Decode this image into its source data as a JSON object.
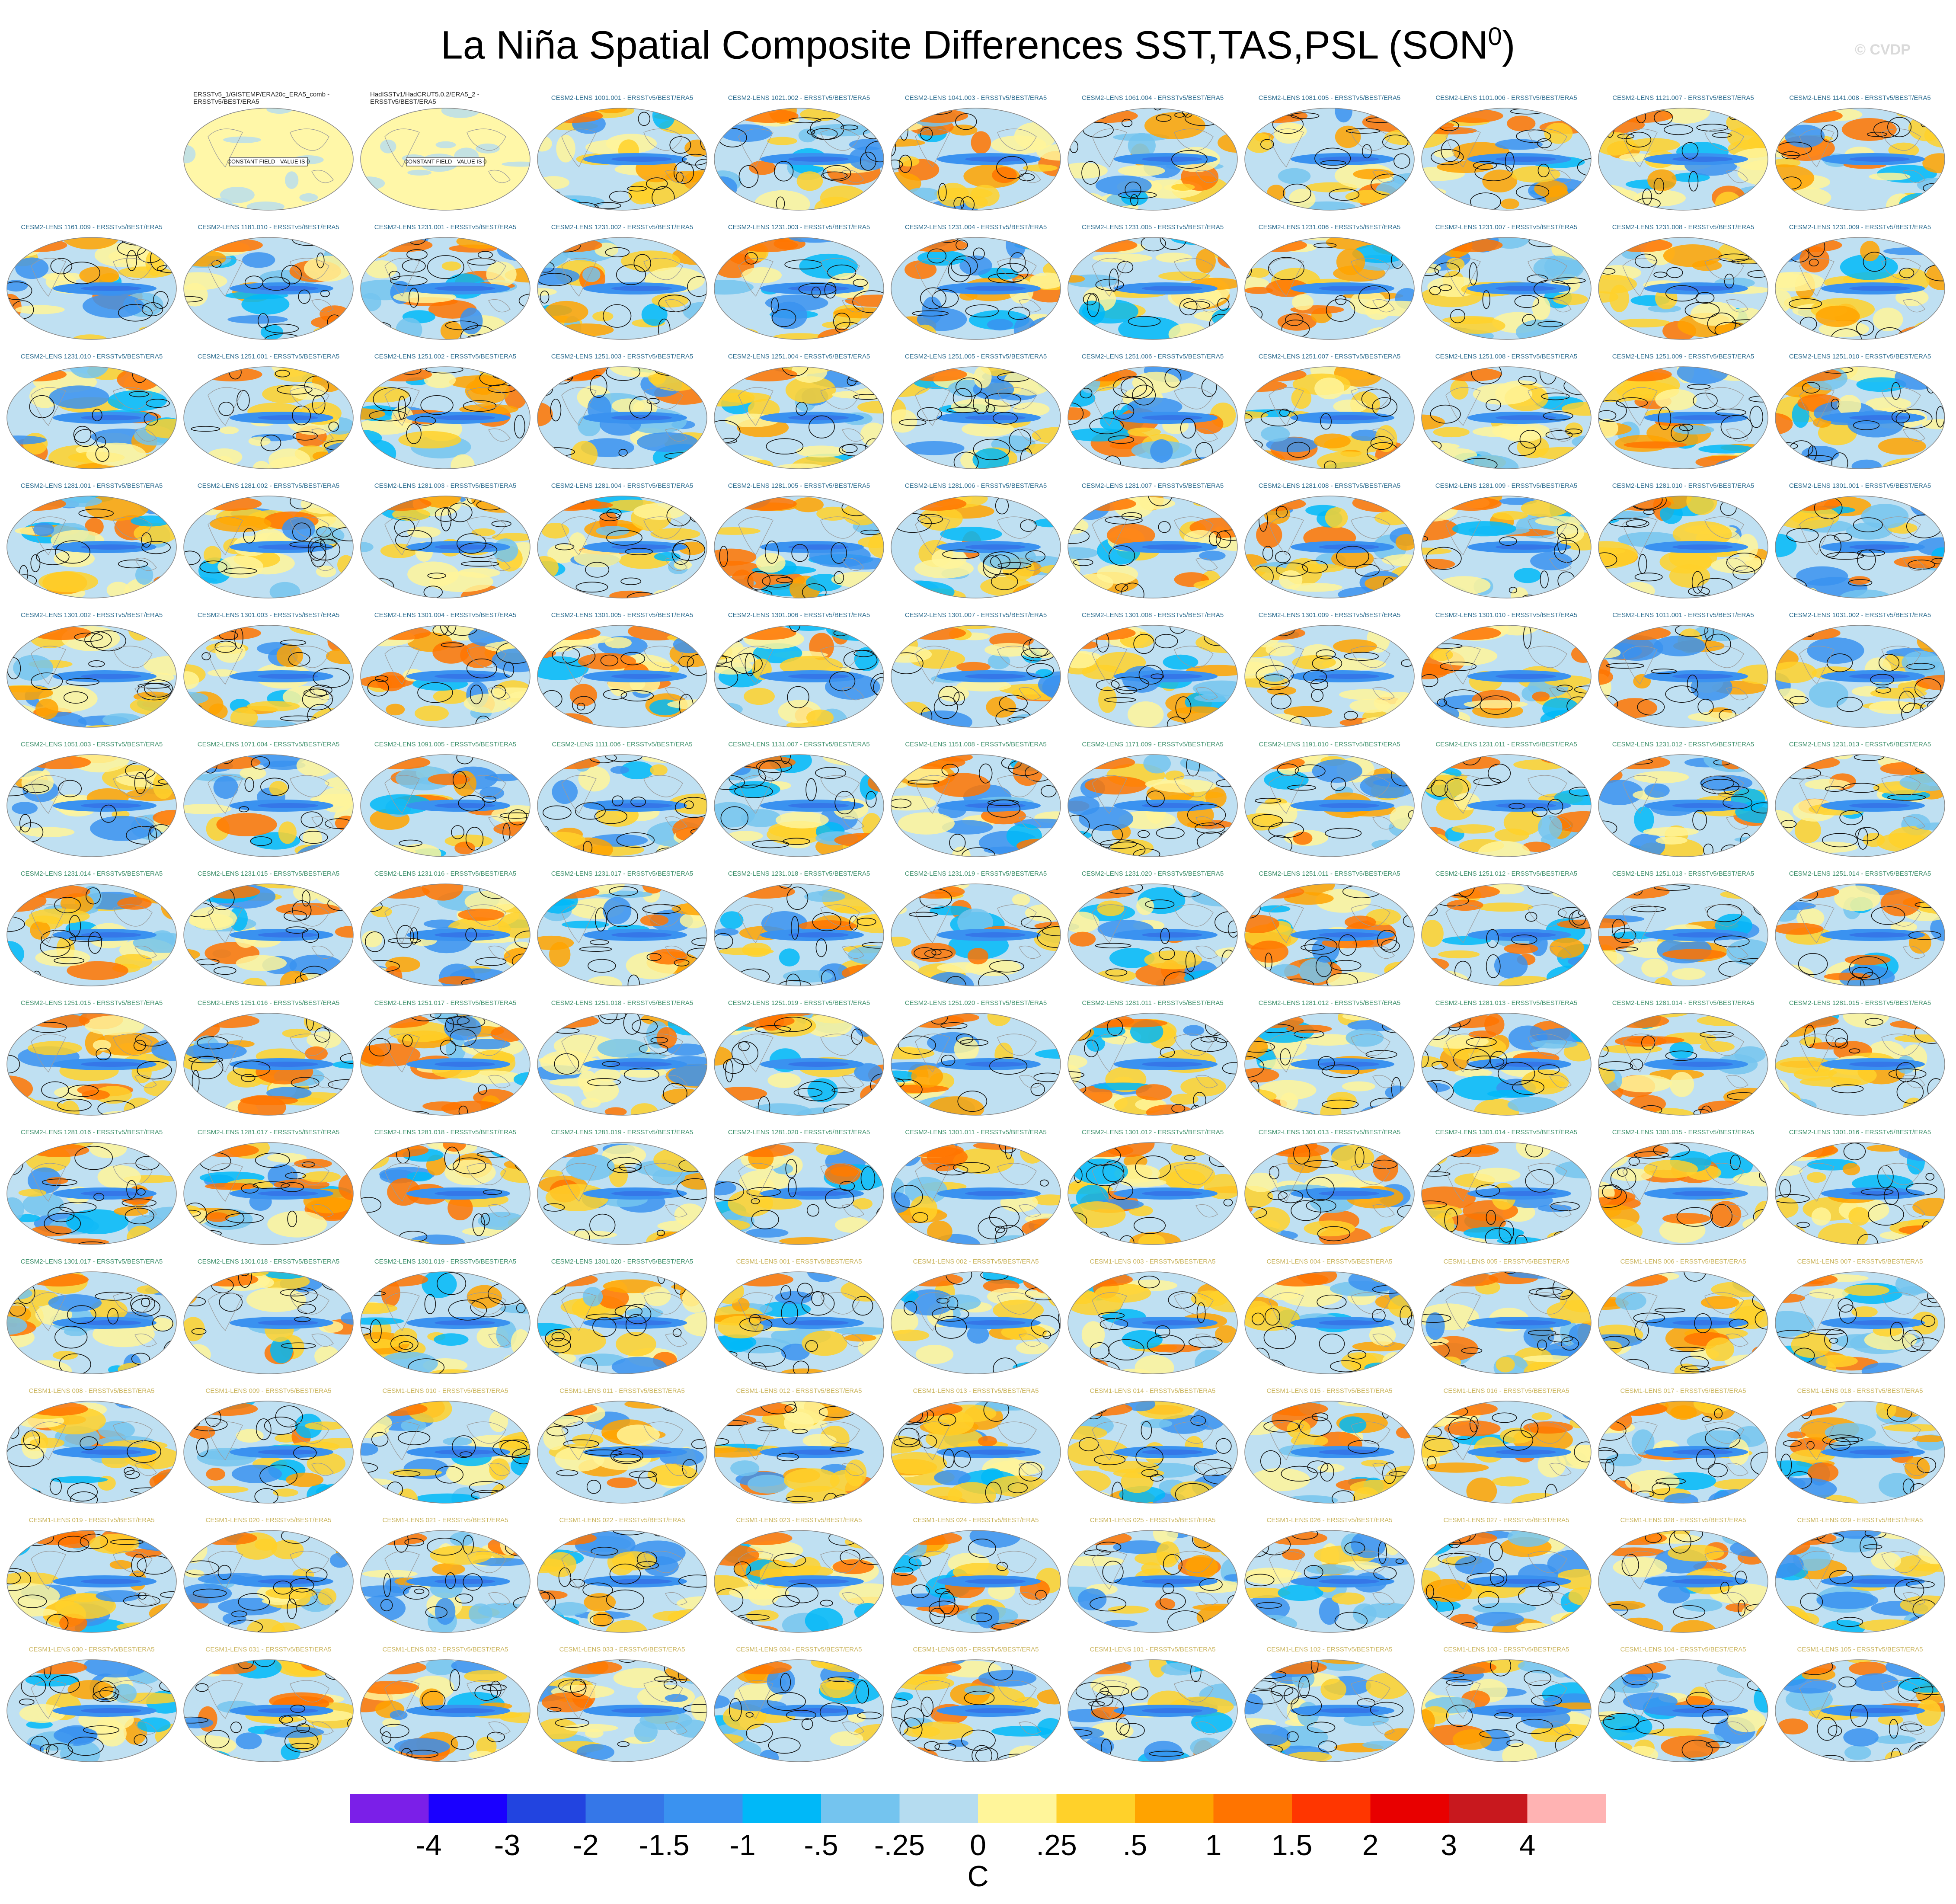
{
  "header": {
    "title": "La Niña Spatial Composite Differences SST,TAS,PSL (SON",
    "title_sup": "0",
    "title_end": ")",
    "watermark": "© CVDP"
  },
  "chart_data": {
    "type": "heatmap",
    "title": "La Niña Spatial Composite Differences SST,TAS,PSL (SON0)",
    "grid": {
      "rows": 13,
      "columns": 11
    },
    "observations": [
      {
        "label": "ERSSTv5_1/GISTEMP/ERA20c_ERA5_comb - ERSSTv5/BEST/ERA5",
        "field_note": "CONSTANT FIELD - VALUE IS 0"
      },
      {
        "label": "HadISSTv1/HadCRUT5.0.2/ERA5_2 - ERSSTv5/BEST/ERA5",
        "field_note": "CONSTANT FIELD - VALUE IS 0"
      }
    ],
    "panel_labels": [
      "CESM2-LENS 1001.001 - ERSSTv5/BEST/ERA5",
      "CESM2-LENS 1021.002 - ERSSTv5/BEST/ERA5",
      "CESM2-LENS 1041.003 - ERSSTv5/BEST/ERA5",
      "CESM2-LENS 1061.004 - ERSSTv5/BEST/ERA5",
      "CESM2-LENS 1081.005 - ERSSTv5/BEST/ERA5",
      "CESM2-LENS 1101.006 - ERSSTv5/BEST/ERA5",
      "CESM2-LENS 1121.007 - ERSSTv5/BEST/ERA5",
      "CESM2-LENS 1141.008 - ERSSTv5/BEST/ERA5",
      "CESM2-LENS 1161.009 - ERSSTv5/BEST/ERA5",
      "CESM2-LENS 1181.010 - ERSSTv5/BEST/ERA5",
      "CESM2-LENS 1231.001 - ERSSTv5/BEST/ERA5",
      "CESM2-LENS 1231.002 - ERSSTv5/BEST/ERA5",
      "CESM2-LENS 1231.003 - ERSSTv5/BEST/ERA5",
      "CESM2-LENS 1231.004 - ERSSTv5/BEST/ERA5",
      "CESM2-LENS 1231.005 - ERSSTv5/BEST/ERA5",
      "CESM2-LENS 1231.006 - ERSSTv5/BEST/ERA5",
      "CESM2-LENS 1231.007 - ERSSTv5/BEST/ERA5",
      "CESM2-LENS 1231.008 - ERSSTv5/BEST/ERA5",
      "CESM2-LENS 1231.009 - ERSSTv5/BEST/ERA5",
      "CESM2-LENS 1231.010 - ERSSTv5/BEST/ERA5",
      "CESM2-LENS 1251.001 - ERSSTv5/BEST/ERA5",
      "CESM2-LENS 1251.002 - ERSSTv5/BEST/ERA5",
      "CESM2-LENS 1251.003 - ERSSTv5/BEST/ERA5",
      "CESM2-LENS 1251.004 - ERSSTv5/BEST/ERA5",
      "CESM2-LENS 1251.005 - ERSSTv5/BEST/ERA5",
      "CESM2-LENS 1251.006 - ERSSTv5/BEST/ERA5",
      "CESM2-LENS 1251.007 - ERSSTv5/BEST/ERA5",
      "CESM2-LENS 1251.008 - ERSSTv5/BEST/ERA5",
      "CESM2-LENS 1251.009 - ERSSTv5/BEST/ERA5",
      "CESM2-LENS 1251.010 - ERSSTv5/BEST/ERA5",
      "CESM2-LENS 1281.001 - ERSSTv5/BEST/ERA5",
      "CESM2-LENS 1281.002 - ERSSTv5/BEST/ERA5",
      "CESM2-LENS 1281.003 - ERSSTv5/BEST/ERA5",
      "CESM2-LENS 1281.004 - ERSSTv5/BEST/ERA5",
      "CESM2-LENS 1281.005 - ERSSTv5/BEST/ERA5",
      "CESM2-LENS 1281.006 - ERSSTv5/BEST/ERA5",
      "CESM2-LENS 1281.007 - ERSSTv5/BEST/ERA5",
      "CESM2-LENS 1281.008 - ERSSTv5/BEST/ERA5",
      "CESM2-LENS 1281.009 - ERSSTv5/BEST/ERA5",
      "CESM2-LENS 1281.010 - ERSSTv5/BEST/ERA5",
      "CESM2-LENS 1301.001 - ERSSTv5/BEST/ERA5",
      "CESM2-LENS 1301.002 - ERSSTv5/BEST/ERA5",
      "CESM2-LENS 1301.003 - ERSSTv5/BEST/ERA5",
      "CESM2-LENS 1301.004 - ERSSTv5/BEST/ERA5",
      "CESM2-LENS 1301.005 - ERSSTv5/BEST/ERA5",
      "CESM2-LENS 1301.006 - ERSSTv5/BEST/ERA5",
      "CESM2-LENS 1301.007 - ERSSTv5/BEST/ERA5",
      "CESM2-LENS 1301.008 - ERSSTv5/BEST/ERA5",
      "CESM2-LENS 1301.009 - ERSSTv5/BEST/ERA5",
      "CESM2-LENS 1301.010 - ERSSTv5/BEST/ERA5",
      "CESM2-LENS 1011.001 - ERSSTv5/BEST/ERA5",
      "CESM2-LENS 1031.002 - ERSSTv5/BEST/ERA5",
      "CESM2-LENS 1051.003 - ERSSTv5/BEST/ERA5",
      "CESM2-LENS 1071.004 - ERSSTv5/BEST/ERA5",
      "CESM2-LENS 1091.005 - ERSSTv5/BEST/ERA5",
      "CESM2-LENS 1111.006 - ERSSTv5/BEST/ERA5",
      "CESM2-LENS 1131.007 - ERSSTv5/BEST/ERA5",
      "CESM2-LENS 1151.008 - ERSSTv5/BEST/ERA5",
      "CESM2-LENS 1171.009 - ERSSTv5/BEST/ERA5",
      "CESM2-LENS 1191.010 - ERSSTv5/BEST/ERA5",
      "CESM2-LENS 1231.011 - ERSSTv5/BEST/ERA5",
      "CESM2-LENS 1231.012 - ERSSTv5/BEST/ERA5",
      "CESM2-LENS 1231.013 - ERSSTv5/BEST/ERA5",
      "CESM2-LENS 1231.014 - ERSSTv5/BEST/ERA5",
      "CESM2-LENS 1231.015 - ERSSTv5/BEST/ERA5",
      "CESM2-LENS 1231.016 - ERSSTv5/BEST/ERA5",
      "CESM2-LENS 1231.017 - ERSSTv5/BEST/ERA5",
      "CESM2-LENS 1231.018 - ERSSTv5/BEST/ERA5",
      "CESM2-LENS 1231.019 - ERSSTv5/BEST/ERA5",
      "CESM2-LENS 1231.020 - ERSSTv5/BEST/ERA5",
      "CESM2-LENS 1251.011 - ERSSTv5/BEST/ERA5",
      "CESM2-LENS 1251.012 - ERSSTv5/BEST/ERA5",
      "CESM2-LENS 1251.013 - ERSSTv5/BEST/ERA5",
      "CESM2-LENS 1251.014 - ERSSTv5/BEST/ERA5",
      "CESM2-LENS 1251.015 - ERSSTv5/BEST/ERA5",
      "CESM2-LENS 1251.016 - ERSSTv5/BEST/ERA5",
      "CESM2-LENS 1251.017 - ERSSTv5/BEST/ERA5",
      "CESM2-LENS 1251.018 - ERSSTv5/BEST/ERA5",
      "CESM2-LENS 1251.019 - ERSSTv5/BEST/ERA5",
      "CESM2-LENS 1251.020 - ERSSTv5/BEST/ERA5",
      "CESM2-LENS 1281.011 - ERSSTv5/BEST/ERA5",
      "CESM2-LENS 1281.012 - ERSSTv5/BEST/ERA5",
      "CESM2-LENS 1281.013 - ERSSTv5/BEST/ERA5",
      "CESM2-LENS 1281.014 - ERSSTv5/BEST/ERA5",
      "CESM2-LENS 1281.015 - ERSSTv5/BEST/ERA5",
      "CESM2-LENS 1281.016 - ERSSTv5/BEST/ERA5",
      "CESM2-LENS 1281.017 - ERSSTv5/BEST/ERA5",
      "CESM2-LENS 1281.018 - ERSSTv5/BEST/ERA5",
      "CESM2-LENS 1281.019 - ERSSTv5/BEST/ERA5",
      "CESM2-LENS 1281.020 - ERSSTv5/BEST/ERA5",
      "CESM2-LENS 1301.011 - ERSSTv5/BEST/ERA5",
      "CESM2-LENS 1301.012 - ERSSTv5/BEST/ERA5",
      "CESM2-LENS 1301.013 - ERSSTv5/BEST/ERA5",
      "CESM2-LENS 1301.014 - ERSSTv5/BEST/ERA5",
      "CESM2-LENS 1301.015 - ERSSTv5/BEST/ERA5",
      "CESM2-LENS 1301.016 - ERSSTv5/BEST/ERA5",
      "CESM2-LENS 1301.017 - ERSSTv5/BEST/ERA5",
      "CESM2-LENS 1301.018 - ERSSTv5/BEST/ERA5",
      "CESM2-LENS 1301.019 - ERSSTv5/BEST/ERA5",
      "CESM2-LENS 1301.020 - ERSSTv5/BEST/ERA5",
      "CESM1-LENS 001 - ERSSTv5/BEST/ERA5",
      "CESM1-LENS 002 - ERSSTv5/BEST/ERA5",
      "CESM1-LENS 003 - ERSSTv5/BEST/ERA5",
      "CESM1-LENS 004 - ERSSTv5/BEST/ERA5",
      "CESM1-LENS 005 - ERSSTv5/BEST/ERA5",
      "CESM1-LENS 006 - ERSSTv5/BEST/ERA5",
      "CESM1-LENS 007 - ERSSTv5/BEST/ERA5",
      "CESM1-LENS 008 - ERSSTv5/BEST/ERA5",
      "CESM1-LENS 009 - ERSSTv5/BEST/ERA5",
      "CESM1-LENS 010 - ERSSTv5/BEST/ERA5",
      "CESM1-LENS 011 - ERSSTv5/BEST/ERA5",
      "CESM1-LENS 012 - ERSSTv5/BEST/ERA5",
      "CESM1-LENS 013 - ERSSTv5/BEST/ERA5",
      "CESM1-LENS 014 - ERSSTv5/BEST/ERA5",
      "CESM1-LENS 015 - ERSSTv5/BEST/ERA5",
      "CESM1-LENS 016 - ERSSTv5/BEST/ERA5",
      "CESM1-LENS 017 - ERSSTv5/BEST/ERA5",
      "CESM1-LENS 018 - ERSSTv5/BEST/ERA5",
      "CESM1-LENS 019 - ERSSTv5/BEST/ERA5",
      "CESM1-LENS 020 - ERSSTv5/BEST/ERA5",
      "CESM1-LENS 021 - ERSSTv5/BEST/ERA5",
      "CESM1-LENS 022 - ERSSTv5/BEST/ERA5",
      "CESM1-LENS 023 - ERSSTv5/BEST/ERA5",
      "CESM1-LENS 024 - ERSSTv5/BEST/ERA5",
      "CESM1-LENS 025 - ERSSTv5/BEST/ERA5",
      "CESM1-LENS 026 - ERSSTv5/BEST/ERA5",
      "CESM1-LENS 027 - ERSSTv5/BEST/ERA5",
      "CESM1-LENS 028 - ERSSTv5/BEST/ERA5",
      "CESM1-LENS 029 - ERSSTv5/BEST/ERA5",
      "CESM1-LENS 030 - ERSSTv5/BEST/ERA5",
      "CESM1-LENS 031 - ERSSTv5/BEST/ERA5",
      "CESM1-LENS 032 - ERSSTv5/BEST/ERA5",
      "CESM1-LENS 033 - ERSSTv5/BEST/ERA5",
      "CESM1-LENS 034 - ERSSTv5/BEST/ERA5",
      "CESM1-LENS 035 - ERSSTv5/BEST/ERA5",
      "CESM1-LENS 101 - ERSSTv5/BEST/ERA5",
      "CESM1-LENS 102 - ERSSTv5/BEST/ERA5",
      "CESM1-LENS 103 - ERSSTv5/BEST/ERA5",
      "CESM1-LENS 104 - ERSSTv5/BEST/ERA5",
      "CESM1-LENS 105 - ERSSTv5/BEST/ERA5"
    ],
    "colorbar": {
      "levels": [
        "-4",
        "-3",
        "-2",
        "-1.5",
        "-1",
        "-.5",
        "-.25",
        "0",
        ".25",
        ".5",
        "1",
        "1.5",
        "2",
        "3",
        "4"
      ],
      "colors": [
        "#7b1fe8",
        "#1a00ff",
        "#2244e0",
        "#3577e8",
        "#3a92f0",
        "#00b8f8",
        "#74c4ef",
        "#b5dcf0",
        "#fff59a",
        "#ffd12a",
        "#ffa300",
        "#ff7400",
        "#ff3600",
        "#e80000",
        "#c8181e",
        "#ffb3b3"
      ],
      "unit": "C"
    },
    "label_colors": {
      "cesm2_a": "#2b6c8f",
      "cesm2_b": "#3c8f6a",
      "cesm1": "#c9b35a"
    }
  }
}
